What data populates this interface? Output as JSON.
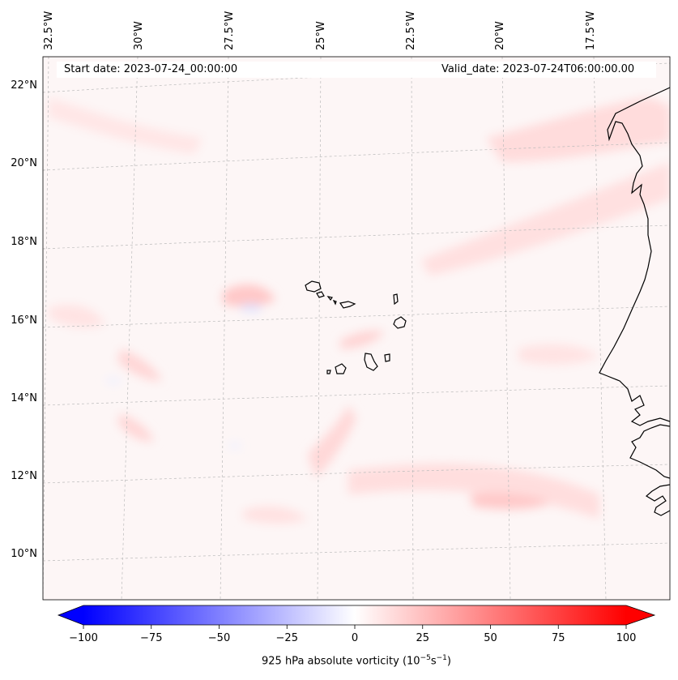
{
  "map": {
    "projection": "conic",
    "extent": {
      "lon_min": -32.5,
      "lon_max": -16.5,
      "lat_min": 8.9,
      "lat_max": 22.8
    },
    "field": "925 hPa absolute vorticity",
    "colors": {
      "coastline": "#000000",
      "gridline": "#bbbbbb",
      "negative": "#0000ff",
      "positive": "#ff0000",
      "neutral": "#ffffff"
    },
    "lon_labels": [
      "32.5°W",
      "30°W",
      "27.5°W",
      "25°W",
      "22.5°W",
      "20°W",
      "17.5°W"
    ],
    "lat_labels": [
      "22°N",
      "20°N",
      "18°N",
      "16°N",
      "14°N",
      "12°N",
      "10°N"
    ],
    "start_date": "Start date: 2023-07-24_00:00:00",
    "valid_date": "Valid_date: 2023-07-24T06:00:00.00",
    "features": [
      "Cape Verde islands",
      "West African coastline"
    ]
  },
  "colorbar": {
    "min": -100,
    "max": 100,
    "extend": "both",
    "cmap": "bwr",
    "ticks": [
      "−100",
      "−75",
      "−50",
      "−25",
      "0",
      "25",
      "50",
      "75",
      "100"
    ],
    "label_main": "925 hPa absolute vorticity (10",
    "label_exp1": "−5",
    "label_mid": "s",
    "label_exp2": "−1",
    "label_end": ")"
  }
}
